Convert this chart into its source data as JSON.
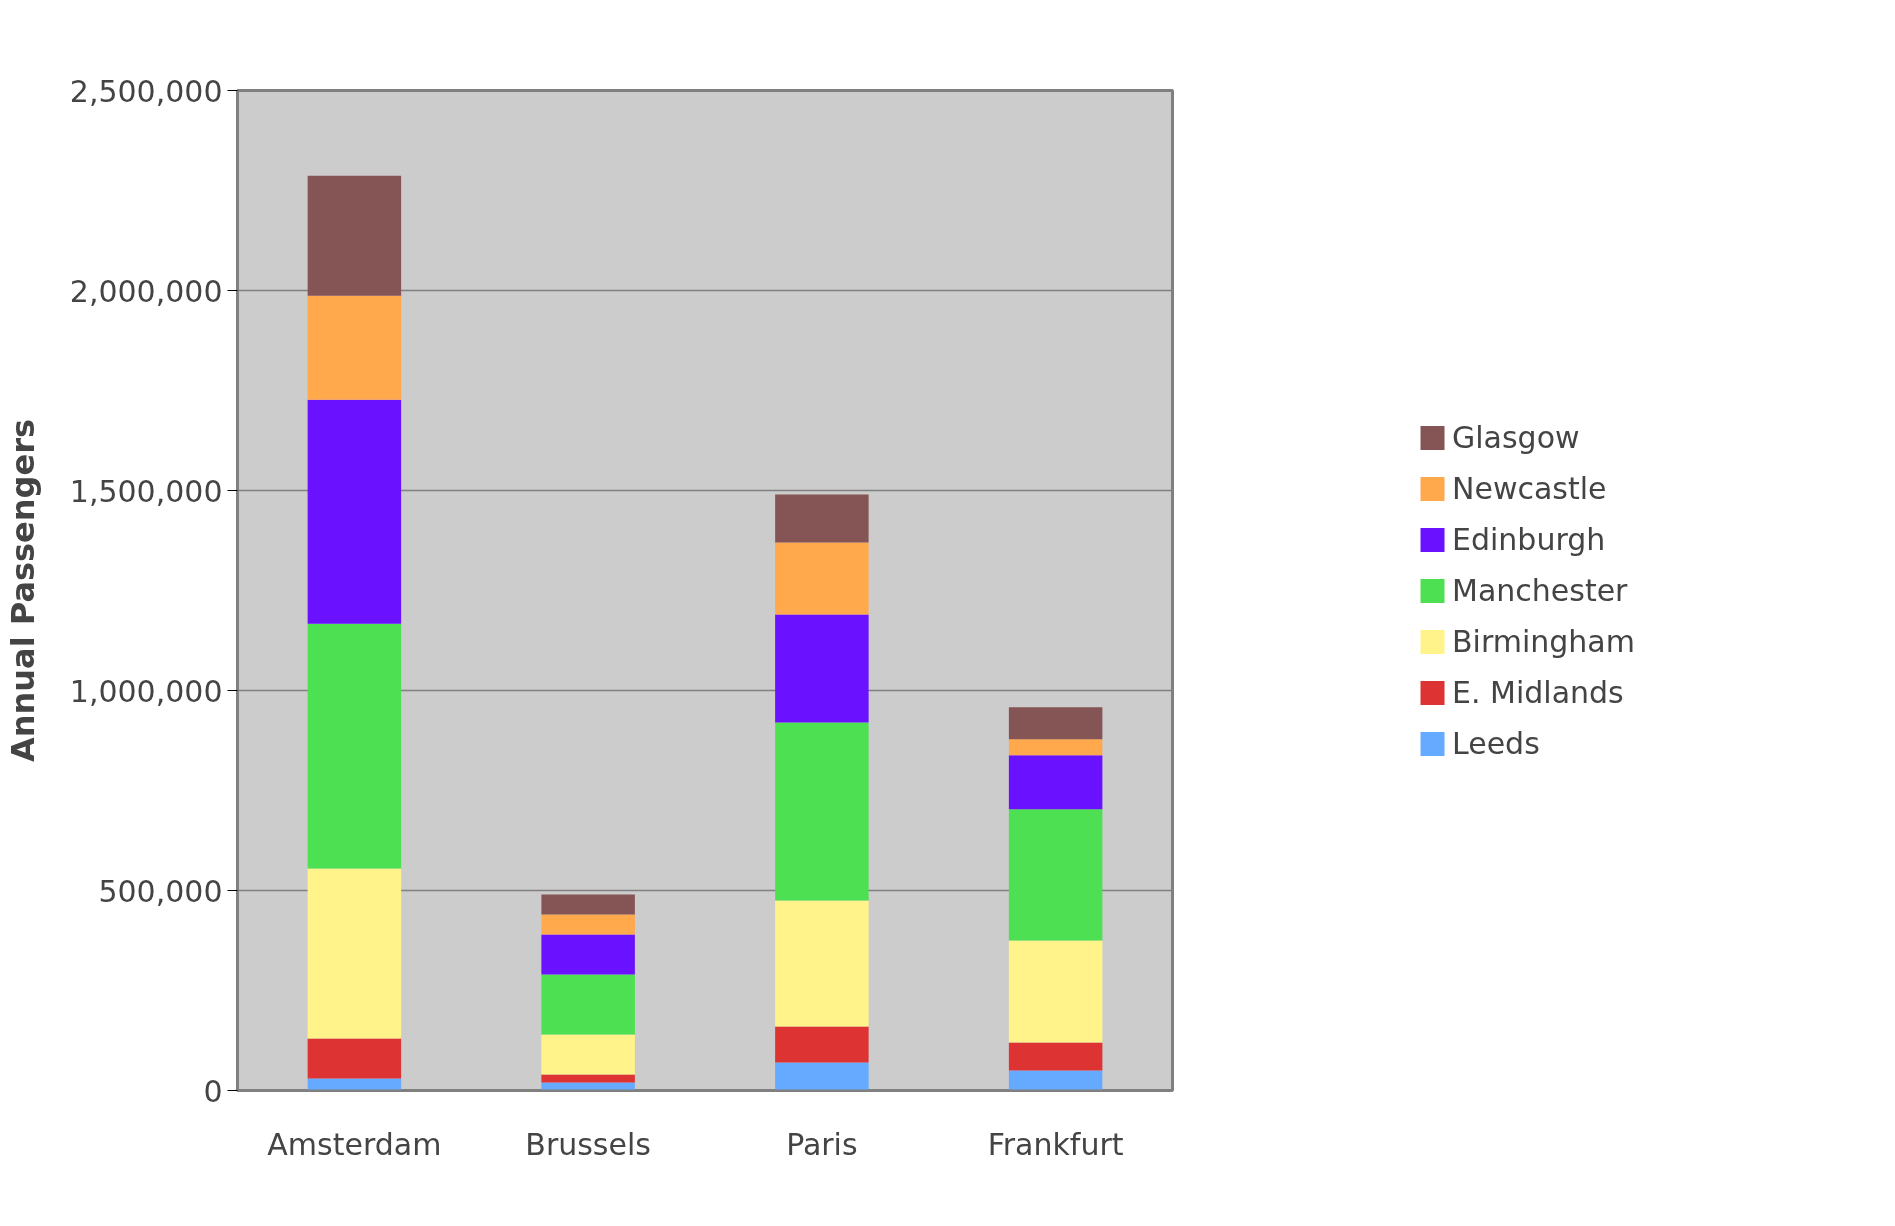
{
  "chart_data": {
    "type": "bar",
    "stacked": true,
    "ylabel": "Annual Passengers",
    "categories": [
      "Amsterdam",
      "Brussels",
      "Paris",
      "Frankfurt"
    ],
    "series": [
      {
        "name": "Leeds",
        "color": "#66aaff",
        "values": [
          30000,
          20000,
          70000,
          50000
        ]
      },
      {
        "name": "E. Midlands",
        "color": "#dd3333",
        "values": [
          100000,
          20000,
          90000,
          70000
        ]
      },
      {
        "name": "Birmingham",
        "color": "#fff38a",
        "values": [
          425000,
          100000,
          315000,
          255000
        ]
      },
      {
        "name": "Manchester",
        "color": "#4ce052",
        "values": [
          612000,
          150000,
          445000,
          328000
        ]
      },
      {
        "name": "Edinburgh",
        "color": "#6a11ff",
        "values": [
          560000,
          100000,
          270000,
          135000
        ]
      },
      {
        "name": "Newcastle",
        "color": "#ffa84c",
        "values": [
          260000,
          50000,
          180000,
          40000
        ]
      },
      {
        "name": "Glasgow",
        "color": "#855555",
        "values": [
          300000,
          50000,
          120000,
          80000
        ]
      }
    ],
    "ylim": [
      0,
      2500000
    ],
    "yticks": [
      {
        "value": 0,
        "label": "0"
      },
      {
        "value": 500000,
        "label": "500,000"
      },
      {
        "value": 1000000,
        "label": "1,000,000"
      },
      {
        "value": 1500000,
        "label": "1,500,000"
      },
      {
        "value": 2000000,
        "label": "2,000,000"
      },
      {
        "value": 2500000,
        "label": "2,500,000"
      }
    ],
    "grid": "y",
    "legend": "right"
  }
}
